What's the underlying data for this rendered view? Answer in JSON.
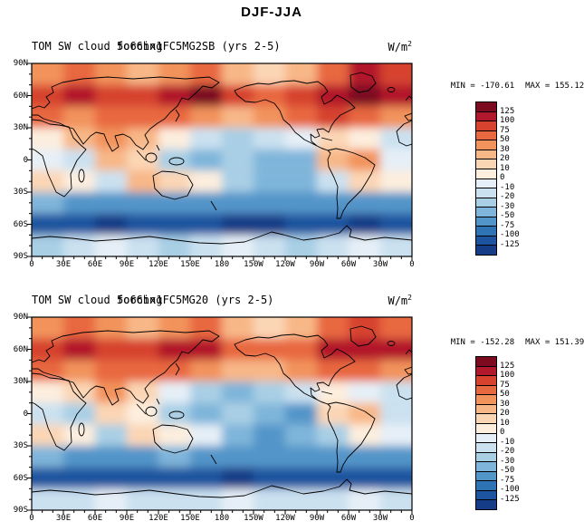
{
  "main_title": "DJF-JJA",
  "panels": [
    {
      "title_base": "TOM SW cloud forcing",
      "title_case": "5o66hx1FC5MG2SB (yrs 2-5)",
      "units_base": "W/m",
      "units_exp": "2",
      "min_label": "MIN = -170.61",
      "max_label": "MAX = 155.12"
    },
    {
      "title_base": "TOM SW cloud forcing",
      "title_case": "5o66hx1FC5MG20 (yrs 2-5)",
      "units_base": "W/m",
      "units_exp": "2",
      "min_label": "MIN = -152.28",
      "max_label": "MAX = 151.39"
    }
  ],
  "axis": {
    "lat_ticks": [
      "90N",
      "60N",
      "30N",
      "0",
      "30S",
      "60S",
      "90S"
    ],
    "lon_ticks": [
      "0",
      "30E",
      "60E",
      "90E",
      "120E",
      "150E",
      "180",
      "150W",
      "120W",
      "90W",
      "60W",
      "30W",
      "0"
    ]
  },
  "colorbar": {
    "labels": [
      "125",
      "100",
      "75",
      "50",
      "30",
      "20",
      "10",
      "0",
      "-10",
      "-20",
      "-30",
      "-50",
      "-75",
      "-100",
      "-125"
    ],
    "colors": [
      "#7c0b20",
      "#b2182b",
      "#d6422d",
      "#e8683f",
      "#f2935c",
      "#f8b787",
      "#fbd6b5",
      "#fdeede",
      "#e6eff7",
      "#cbe1f0",
      "#a9cfe5",
      "#7fb5da",
      "#5295c9",
      "#2e74b5",
      "#1d549f",
      "#143c87"
    ]
  },
  "chart_data": [
    {
      "type": "heatmap",
      "title": "TOM SW cloud forcing 5o66hx1FC5MG2SB (yrs 2-5)",
      "subtitle": "DJF-JJA",
      "units": "W/m2",
      "min": -170.61,
      "max": 155.12,
      "levels": [
        125,
        100,
        75,
        50,
        30,
        20,
        10,
        0,
        -10,
        -20,
        -30,
        -50,
        -75,
        -100,
        -125
      ],
      "lat_centers": [
        80,
        60,
        40,
        20,
        0,
        -20,
        -40,
        -60,
        -80
      ],
      "lon_centers": [
        15,
        45,
        75,
        105,
        135,
        165,
        195,
        225,
        255,
        285,
        315,
        345
      ],
      "values": [
        [
          40,
          60,
          40,
          30,
          40,
          60,
          30,
          15,
          25,
          60,
          110,
          80
        ],
        [
          90,
          110,
          80,
          90,
          110,
          130,
          80,
          60,
          80,
          110,
          130,
          110
        ],
        [
          60,
          40,
          60,
          70,
          60,
          45,
          30,
          35,
          55,
          80,
          60,
          45
        ],
        [
          5,
          25,
          40,
          25,
          5,
          -15,
          -25,
          -15,
          -5,
          15,
          5,
          -10
        ],
        [
          -5,
          -15,
          25,
          15,
          -20,
          -35,
          -25,
          -35,
          -45,
          25,
          35,
          -5
        ],
        [
          20,
          10,
          -15,
          25,
          15,
          5,
          -25,
          -45,
          -35,
          -15,
          15,
          5
        ],
        [
          -45,
          -55,
          -65,
          -60,
          -50,
          -55,
          -70,
          -65,
          -55,
          -60,
          -70,
          -55
        ],
        [
          -105,
          -115,
          -125,
          -120,
          -110,
          -120,
          -130,
          -125,
          -110,
          -115,
          -125,
          -120
        ],
        [
          -20,
          -12,
          -8,
          -15,
          -20,
          -12,
          -8,
          -15,
          -20,
          -12,
          -8,
          -15
        ]
      ]
    },
    {
      "type": "heatmap",
      "title": "TOM SW cloud forcing 5o66hx1FC5MG20 (yrs 2-5)",
      "subtitle": "DJF-JJA",
      "units": "W/m2",
      "min": -152.28,
      "max": 151.39,
      "levels": [
        125,
        100,
        75,
        50,
        30,
        20,
        10,
        0,
        -10,
        -20,
        -30,
        -50,
        -75,
        -100,
        -125
      ],
      "lat_centers": [
        80,
        60,
        40,
        20,
        0,
        -20,
        -40,
        -60,
        -80
      ],
      "lon_centers": [
        15,
        45,
        75,
        105,
        135,
        165,
        195,
        225,
        255,
        285,
        315,
        345
      ],
      "values": [
        [
          35,
          55,
          45,
          25,
          35,
          55,
          25,
          20,
          30,
          55,
          100,
          70
        ],
        [
          85,
          105,
          85,
          95,
          105,
          125,
          75,
          55,
          75,
          105,
          125,
          105
        ],
        [
          55,
          45,
          65,
          65,
          55,
          40,
          25,
          30,
          50,
          75,
          55,
          40
        ],
        [
          10,
          20,
          35,
          20,
          0,
          -20,
          -30,
          -20,
          -10,
          10,
          0,
          -15
        ],
        [
          -10,
          -20,
          20,
          10,
          -25,
          -30,
          -20,
          -40,
          -50,
          20,
          30,
          -10
        ],
        [
          15,
          5,
          -20,
          20,
          10,
          0,
          -30,
          -50,
          -40,
          -20,
          10,
          0
        ],
        [
          -40,
          -50,
          -60,
          -55,
          -45,
          -50,
          -65,
          -60,
          -50,
          -55,
          -65,
          -50
        ],
        [
          -100,
          -110,
          -120,
          -115,
          -105,
          -115,
          -125,
          -120,
          -105,
          -110,
          -120,
          -115
        ],
        [
          -18,
          -10,
          -6,
          -12,
          -18,
          -10,
          -6,
          -12,
          -18,
          -10,
          -6,
          -12
        ]
      ]
    }
  ]
}
